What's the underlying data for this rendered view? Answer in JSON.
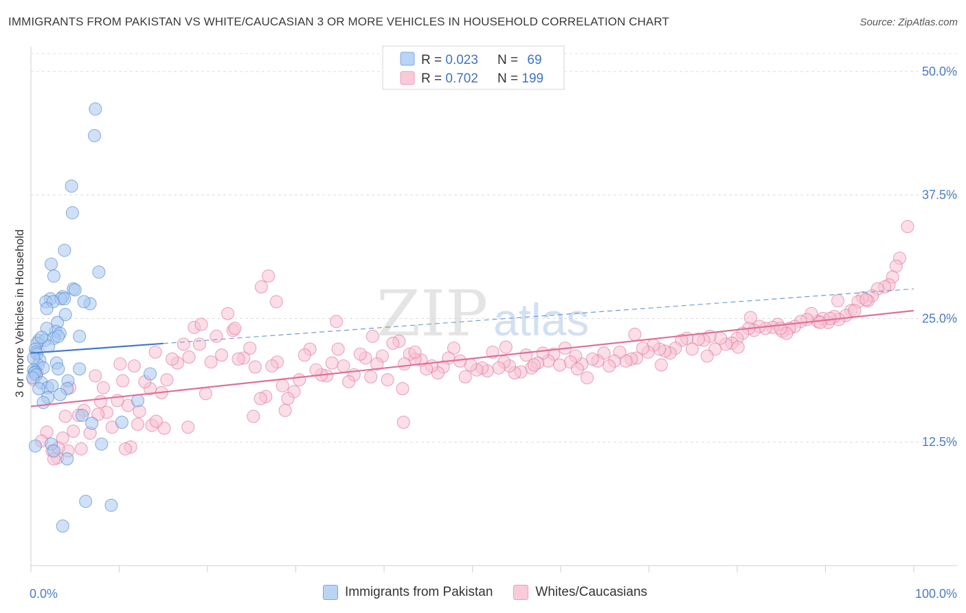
{
  "title": "IMMIGRANTS FROM PAKISTAN VS WHITE/CAUCASIAN 3 OR MORE VEHICLES IN HOUSEHOLD CORRELATION CHART",
  "source": "Source: ZipAtlas.com",
  "watermark": {
    "zip": "ZIP",
    "atlas": "atlas"
  },
  "legend_top": [
    {
      "r_label": "R = ",
      "r_value": "0.023",
      "n_label": "N = ",
      "n_value": "69",
      "color": "#8db5e8"
    },
    {
      "r_label": "R = ",
      "r_value": "0.702",
      "n_label": "N = ",
      "n_value": "199",
      "color": "#f2a4bd"
    }
  ],
  "chart_data": {
    "type": "scatter",
    "title": "IMMIGRANTS FROM PAKISTAN VS WHITE/CAUCASIAN 3 OR MORE VEHICLES IN HOUSEHOLD CORRELATION CHART",
    "xlabel": "",
    "ylabel": "3 or more Vehicles in Household",
    "xlim": [
      0,
      100
    ],
    "ylim": [
      0,
      52.5
    ],
    "x_tick_labels": [
      "0.0%",
      "100.0%"
    ],
    "y_ticks": [
      12.5,
      25.0,
      37.5,
      50.0
    ],
    "y_tick_labels": [
      "12.5%",
      "25.0%",
      "37.5%",
      "50.0%"
    ],
    "grid": "horizontal dashed",
    "series": [
      {
        "name": "Immigrants from Pakistan",
        "color": "#4a86d0",
        "fill": "#a9c8f0",
        "trend": {
          "x0": 0,
          "y0": 21.5,
          "x1": 100,
          "y1": 28.0,
          "solid_until": 15
        },
        "points": [
          [
            7.3,
            46.2
          ],
          [
            7.2,
            43.5
          ],
          [
            4.6,
            38.4
          ],
          [
            4.7,
            35.7
          ],
          [
            3.8,
            31.9
          ],
          [
            2.3,
            30.5
          ],
          [
            7.7,
            29.7
          ],
          [
            2.6,
            29.3
          ],
          [
            4.8,
            28.0
          ],
          [
            5.0,
            27.9
          ],
          [
            3.6,
            27.2
          ],
          [
            2.2,
            27.0
          ],
          [
            3.4,
            27.0
          ],
          [
            3.8,
            27.0
          ],
          [
            1.7,
            26.7
          ],
          [
            2.5,
            26.7
          ],
          [
            6.7,
            26.5
          ],
          [
            1.8,
            26.0
          ],
          [
            3.9,
            25.4
          ],
          [
            3.0,
            24.6
          ],
          [
            2.8,
            23.7
          ],
          [
            3.3,
            23.5
          ],
          [
            2.6,
            23.0
          ],
          [
            5.5,
            23.2
          ],
          [
            3.1,
            23.2
          ],
          [
            0.9,
            22.8
          ],
          [
            1.6,
            22.8
          ],
          [
            0.7,
            22.5
          ],
          [
            2.0,
            22.2
          ],
          [
            0.5,
            21.9
          ],
          [
            0.6,
            21.6
          ],
          [
            0.7,
            21.4
          ],
          [
            1.0,
            20.8
          ],
          [
            2.9,
            20.5
          ],
          [
            0.8,
            20.3
          ],
          [
            1.4,
            20.0
          ],
          [
            5.5,
            19.9
          ],
          [
            0.3,
            19.8
          ],
          [
            3.1,
            19.9
          ],
          [
            0.5,
            19.6
          ],
          [
            0.4,
            19.5
          ],
          [
            0.6,
            19.3
          ],
          [
            13.5,
            19.4
          ],
          [
            0.2,
            19.0
          ],
          [
            4.2,
            18.7
          ],
          [
            1.2,
            18.5
          ],
          [
            1.9,
            18.0
          ],
          [
            4.1,
            17.9
          ],
          [
            3.3,
            17.3
          ],
          [
            1.9,
            17.0
          ],
          [
            1.4,
            16.5
          ],
          [
            12.1,
            16.7
          ],
          [
            5.8,
            15.2
          ],
          [
            6.9,
            14.4
          ],
          [
            10.3,
            14.5
          ],
          [
            2.3,
            12.3
          ],
          [
            0.5,
            12.1
          ],
          [
            8.0,
            12.3
          ],
          [
            2.6,
            11.6
          ],
          [
            4.1,
            10.8
          ],
          [
            6.2,
            6.5
          ],
          [
            9.1,
            6.1
          ],
          [
            3.6,
            4.0
          ],
          [
            1.8,
            24.0
          ],
          [
            2.4,
            18.2
          ],
          [
            0.9,
            17.9
          ],
          [
            0.3,
            21.0
          ],
          [
            1.2,
            23.1
          ],
          [
            6.0,
            26.7
          ]
        ]
      },
      {
        "name": "Whites/Caucasians",
        "color": "#e06f98",
        "fill": "#f7c3d3",
        "trend": {
          "x0": 0,
          "y0": 16.1,
          "x1": 100,
          "y1": 25.8
        },
        "points": [
          [
            99.3,
            34.3
          ],
          [
            98.4,
            31.1
          ],
          [
            98.0,
            30.3
          ],
          [
            97.6,
            29.2
          ],
          [
            97.2,
            28.4
          ],
          [
            96.7,
            28.2
          ],
          [
            95.9,
            28.0
          ],
          [
            95.3,
            27.3
          ],
          [
            94.8,
            26.8
          ],
          [
            94.2,
            27.1
          ],
          [
            93.7,
            26.7
          ],
          [
            92.9,
            25.8
          ],
          [
            92.3,
            25.3
          ],
          [
            91.5,
            24.9
          ],
          [
            91.0,
            25.2
          ],
          [
            90.3,
            24.6
          ],
          [
            89.7,
            25.0
          ],
          [
            89.1,
            24.7
          ],
          [
            88.4,
            25.5
          ],
          [
            87.9,
            24.9
          ],
          [
            87.2,
            24.7
          ],
          [
            86.5,
            24.2
          ],
          [
            85.9,
            24.0
          ],
          [
            85.1,
            23.7
          ],
          [
            84.6,
            24.4
          ],
          [
            84.0,
            24.1
          ],
          [
            83.2,
            24.0
          ],
          [
            82.5,
            24.2
          ],
          [
            81.9,
            23.8
          ],
          [
            81.3,
            24.0
          ],
          [
            80.6,
            23.5
          ],
          [
            80.0,
            23.0
          ],
          [
            79.4,
            22.5
          ],
          [
            78.7,
            22.4
          ],
          [
            78.1,
            23.0
          ],
          [
            77.5,
            21.9
          ],
          [
            76.9,
            23.2
          ],
          [
            76.2,
            22.8
          ],
          [
            75.6,
            22.9
          ],
          [
            74.9,
            21.9
          ],
          [
            74.3,
            23.0
          ],
          [
            73.7,
            22.8
          ],
          [
            73.0,
            22.0
          ],
          [
            72.4,
            21.5
          ],
          [
            71.8,
            21.7
          ],
          [
            71.2,
            21.9
          ],
          [
            70.5,
            22.3
          ],
          [
            69.9,
            21.6
          ],
          [
            69.3,
            22.0
          ],
          [
            68.6,
            21.0
          ],
          [
            68.0,
            20.9
          ],
          [
            67.4,
            20.7
          ],
          [
            66.7,
            21.6
          ],
          [
            66.1,
            20.7
          ],
          [
            65.5,
            20.2
          ],
          [
            64.9,
            21.5
          ],
          [
            64.2,
            20.7
          ],
          [
            63.6,
            20.9
          ],
          [
            63.0,
            19.0
          ],
          [
            62.4,
            20.4
          ],
          [
            61.7,
            21.2
          ],
          [
            61.1,
            20.6
          ],
          [
            60.5,
            22.0
          ],
          [
            59.9,
            20.3
          ],
          [
            59.2,
            21.4
          ],
          [
            58.6,
            20.7
          ],
          [
            58.0,
            21.5
          ],
          [
            57.4,
            20.5
          ],
          [
            56.7,
            20.0
          ],
          [
            56.1,
            21.3
          ],
          [
            55.5,
            19.6
          ],
          [
            54.8,
            19.5
          ],
          [
            54.2,
            20.2
          ],
          [
            53.6,
            20.6
          ],
          [
            53.0,
            20.0
          ],
          [
            52.3,
            21.6
          ],
          [
            51.7,
            19.7
          ],
          [
            51.1,
            20.0
          ],
          [
            50.5,
            19.8
          ],
          [
            49.8,
            20.3
          ],
          [
            49.2,
            19.1
          ],
          [
            48.6,
            20.7
          ],
          [
            47.9,
            22.0
          ],
          [
            47.3,
            21.0
          ],
          [
            46.7,
            20.1
          ],
          [
            46.1,
            19.5
          ],
          [
            45.4,
            20.2
          ],
          [
            44.8,
            19.9
          ],
          [
            44.2,
            20.8
          ],
          [
            43.5,
            20.9
          ],
          [
            42.9,
            21.4
          ],
          [
            42.3,
            20.4
          ],
          [
            41.7,
            22.7
          ],
          [
            41.0,
            22.5
          ],
          [
            40.4,
            18.8
          ],
          [
            39.8,
            21.2
          ],
          [
            39.2,
            20.4
          ],
          [
            38.5,
            19.1
          ],
          [
            37.9,
            21.0
          ],
          [
            37.3,
            21.4
          ],
          [
            36.6,
            19.3
          ],
          [
            36.0,
            18.6
          ],
          [
            35.4,
            20.2
          ],
          [
            34.8,
            21.9
          ],
          [
            34.1,
            20.5
          ],
          [
            33.5,
            19.2
          ],
          [
            32.9,
            19.3
          ],
          [
            32.3,
            19.8
          ],
          [
            31.6,
            21.9
          ],
          [
            31.0,
            21.3
          ],
          [
            30.4,
            18.8
          ],
          [
            29.8,
            17.6
          ],
          [
            29.1,
            16.9
          ],
          [
            28.5,
            18.2
          ],
          [
            27.9,
            20.6
          ],
          [
            27.3,
            20.2
          ],
          [
            26.6,
            17.1
          ],
          [
            26.0,
            16.9
          ],
          [
            25.4,
            20.1
          ],
          [
            24.8,
            22.0
          ],
          [
            24.1,
            21.0
          ],
          [
            23.5,
            20.9
          ],
          [
            22.9,
            23.8
          ],
          [
            22.3,
            25.5
          ],
          [
            21.6,
            21.3
          ],
          [
            21.0,
            23.2
          ],
          [
            20.4,
            20.6
          ],
          [
            19.8,
            17.4
          ],
          [
            19.1,
            22.4
          ],
          [
            18.5,
            24.1
          ],
          [
            17.9,
            21.1
          ],
          [
            17.3,
            22.4
          ],
          [
            16.6,
            20.5
          ],
          [
            16.0,
            20.9
          ],
          [
            15.4,
            18.8
          ],
          [
            14.8,
            17.5
          ],
          [
            14.1,
            21.6
          ],
          [
            13.5,
            17.9
          ],
          [
            12.9,
            18.6
          ],
          [
            12.3,
            15.6
          ],
          [
            11.7,
            20.2
          ],
          [
            11.0,
            16.2
          ],
          [
            10.4,
            18.7
          ],
          [
            9.8,
            16.7
          ],
          [
            9.2,
            14.0
          ],
          [
            8.6,
            15.5
          ],
          [
            7.9,
            16.6
          ],
          [
            7.3,
            19.2
          ],
          [
            6.7,
            13.4
          ],
          [
            6.0,
            15.7
          ],
          [
            5.4,
            15.2
          ],
          [
            4.8,
            13.6
          ],
          [
            4.2,
            11.6
          ],
          [
            3.6,
            12.9
          ],
          [
            3.0,
            10.9
          ],
          [
            2.4,
            11.6
          ],
          [
            1.8,
            13.5
          ],
          [
            1.2,
            12.6
          ],
          [
            0.7,
            19.5
          ],
          [
            0.3,
            18.8
          ],
          [
            26.1,
            28.2
          ],
          [
            26.9,
            29.3
          ],
          [
            27.8,
            26.7
          ],
          [
            23.1,
            24.0
          ],
          [
            19.3,
            24.4
          ],
          [
            34.6,
            24.7
          ],
          [
            38.7,
            23.2
          ],
          [
            43.5,
            21.6
          ],
          [
            53.8,
            22.1
          ],
          [
            57.0,
            20.3
          ],
          [
            61.9,
            19.9
          ],
          [
            68.4,
            23.4
          ],
          [
            71.4,
            20.3
          ],
          [
            76.6,
            21.2
          ],
          [
            81.5,
            25.1
          ],
          [
            85.6,
            23.5
          ],
          [
            90.5,
            25.0
          ],
          [
            91.4,
            26.8
          ],
          [
            94.6,
            26.9
          ],
          [
            93.3,
            25.8
          ],
          [
            89.4,
            24.6
          ],
          [
            84.9,
            24.0
          ],
          [
            80.1,
            22.1
          ],
          [
            42.1,
            17.9
          ],
          [
            42.2,
            14.5
          ],
          [
            25.2,
            15.1
          ],
          [
            28.8,
            15.7
          ],
          [
            15.1,
            13.9
          ],
          [
            13.7,
            14.2
          ],
          [
            11.3,
            12.0
          ],
          [
            10.7,
            11.8
          ],
          [
            5.7,
            11.8
          ],
          [
            3.1,
            11.9
          ],
          [
            2.6,
            10.8
          ],
          [
            4.4,
            18.0
          ],
          [
            3.9,
            15.1
          ],
          [
            8.2,
            18.0
          ],
          [
            10.1,
            20.4
          ],
          [
            12.1,
            14.3
          ],
          [
            14.2,
            14.6
          ],
          [
            7.6,
            15.3
          ],
          [
            17.8,
            14.0
          ]
        ]
      }
    ]
  },
  "bottom_legend": [
    {
      "label": "Immigrants from Pakistan",
      "fill": "#b9d4f4",
      "stroke": "#7ea8de"
    },
    {
      "label": "Whites/Caucasians",
      "fill": "#f9cbd9",
      "stroke": "#ea9db6"
    }
  ]
}
